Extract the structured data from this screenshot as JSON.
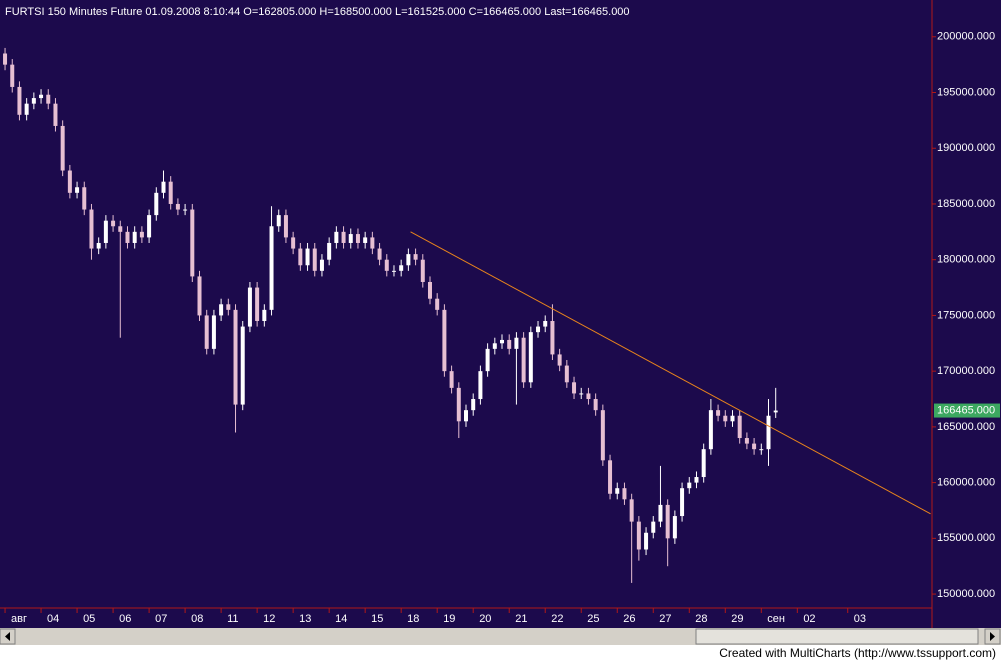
{
  "chart_data": {
    "type": "candlestick",
    "title": "FURTSI  150 Minutes  Future  01.09.2008  8:10:44  O=162805.000  H=168500.000  L=161525.000  C=166465.000  Last=166465.000",
    "footer": "Created with MultiCharts (http://www.tssupport.com)",
    "up_color": "#ffffff",
    "down_color": "#e6bfd2",
    "background": "#1c0a4c",
    "axis_line_color": "#b01818",
    "xlim": [
      -0.7,
      128.7
    ],
    "xticks": [
      {
        "value": 0,
        "label": "авг"
      },
      {
        "value": 5,
        "label": "04"
      },
      {
        "value": 10,
        "label": "05"
      },
      {
        "value": 15,
        "label": "06"
      },
      {
        "value": 20,
        "label": "07"
      },
      {
        "value": 25,
        "label": "08"
      },
      {
        "value": 30,
        "label": "11"
      },
      {
        "value": 35,
        "label": "12"
      },
      {
        "value": 40,
        "label": "13"
      },
      {
        "value": 45,
        "label": "14"
      },
      {
        "value": 50,
        "label": "15"
      },
      {
        "value": 55,
        "label": "18"
      },
      {
        "value": 60,
        "label": "19"
      },
      {
        "value": 65,
        "label": "20"
      },
      {
        "value": 70,
        "label": "21"
      },
      {
        "value": 75,
        "label": "22"
      },
      {
        "value": 80,
        "label": "25"
      },
      {
        "value": 85,
        "label": "26"
      },
      {
        "value": 90,
        "label": "27"
      },
      {
        "value": 95,
        "label": "28"
      },
      {
        "value": 100,
        "label": "29"
      },
      {
        "value": 105,
        "label": "сен"
      },
      {
        "value": 110,
        "label": "02"
      },
      {
        "value": 117,
        "label": "03"
      }
    ],
    "ylim": [
      148750,
      203300
    ],
    "yticks": [
      {
        "value": 150000,
        "label": "150000.000"
      },
      {
        "value": 155000,
        "label": "155000.000"
      },
      {
        "value": 160000,
        "label": "160000.000"
      },
      {
        "value": 165000,
        "label": "165000.000"
      },
      {
        "value": 170000,
        "label": "170000.000"
      },
      {
        "value": 175000,
        "label": "175000.000"
      },
      {
        "value": 180000,
        "label": "180000.000"
      },
      {
        "value": 185000,
        "label": "185000.000"
      },
      {
        "value": 190000,
        "label": "190000.000"
      },
      {
        "value": 195000,
        "label": "195000.000"
      },
      {
        "value": 200000,
        "label": "200000.000"
      }
    ],
    "last_price": {
      "value": 166465,
      "label": "166465.000",
      "color": "#3ca860"
    },
    "trendline": {
      "x": [
        56.3,
        128.5
      ],
      "y": [
        182500,
        157200
      ],
      "color": "#e8841c"
    },
    "open": [
      198500,
      197500,
      195500,
      193000,
      194000,
      194500,
      194800,
      194000,
      192000,
      188000,
      186000,
      186500,
      184500,
      181000,
      181500,
      183500,
      183000,
      182500,
      181500,
      182500,
      182000,
      184000,
      186000,
      187000,
      185000,
      184500,
      184500,
      178500,
      175000,
      172000,
      175000,
      176000,
      175500,
      167000,
      174000,
      177500,
      174500,
      175500,
      183000,
      184000,
      182000,
      181000,
      179500,
      181000,
      179000,
      180000,
      181500,
      182500,
      181500,
      182300,
      181500,
      182000,
      181000,
      180000,
      179000,
      179000,
      179500,
      180500,
      180000,
      178000,
      176500,
      175500,
      170000,
      168500,
      165500,
      166500,
      167500,
      170000,
      172000,
      172500,
      172800,
      172000,
      173000,
      169000,
      173500,
      174000,
      174500,
      171500,
      170500,
      169000,
      168000,
      168000,
      167500,
      166500,
      162000,
      159000,
      159500,
      158500,
      156500,
      154000,
      155500,
      156500,
      158000,
      155000,
      157000,
      159500,
      160000,
      160500,
      163000,
      166500,
      166000,
      165500,
      166000,
      164000,
      163500,
      163000,
      163000,
      166300
    ],
    "high": [
      199000,
      198000,
      196000,
      194500,
      195000,
      195300,
      195300,
      194500,
      192500,
      188500,
      187000,
      187000,
      185000,
      182000,
      184000,
      184000,
      183500,
      183000,
      183000,
      183000,
      184500,
      186500,
      188000,
      187500,
      185500,
      185000,
      185000,
      179000,
      175500,
      175500,
      176500,
      176500,
      176000,
      174500,
      178000,
      178000,
      176000,
      184800,
      184500,
      184500,
      182500,
      181500,
      181500,
      181500,
      180500,
      182000,
      183000,
      183000,
      182800,
      182800,
      182500,
      182500,
      181500,
      180500,
      179500,
      180000,
      181000,
      181000,
      180500,
      178500,
      177000,
      176000,
      170500,
      169000,
      167000,
      168000,
      170500,
      172500,
      173000,
      173300,
      173300,
      173500,
      173500,
      174000,
      174500,
      175000,
      176000,
      172000,
      171000,
      169500,
      168500,
      168500,
      168000,
      167000,
      162500,
      160000,
      160000,
      159000,
      157000,
      156000,
      157000,
      161500,
      158500,
      157500,
      160000,
      160500,
      161000,
      163500,
      167500,
      167000,
      166500,
      166500,
      166500,
      164500,
      164000,
      163500,
      167500,
      168500
    ],
    "low": [
      197000,
      195000,
      192500,
      192500,
      193500,
      194000,
      193500,
      191500,
      187500,
      185500,
      185500,
      184000,
      180000,
      180500,
      181000,
      182500,
      173000,
      181000,
      181000,
      181500,
      181500,
      183500,
      185500,
      184500,
      184000,
      184000,
      178000,
      174500,
      171500,
      171500,
      174500,
      175000,
      164500,
      166500,
      173500,
      174000,
      174000,
      175000,
      182500,
      181500,
      180500,
      179000,
      179000,
      178500,
      178500,
      179500,
      181000,
      181000,
      181000,
      181000,
      181000,
      180500,
      179500,
      178500,
      178500,
      178500,
      179000,
      179500,
      177500,
      176000,
      175000,
      169500,
      168000,
      164000,
      165000,
      166000,
      167000,
      169500,
      171500,
      172000,
      171500,
      167000,
      168500,
      168500,
      173000,
      173500,
      171000,
      170000,
      168500,
      167500,
      167500,
      167000,
      166000,
      161500,
      158500,
      158500,
      158000,
      151000,
      153000,
      153500,
      155000,
      156000,
      152500,
      154500,
      156500,
      159000,
      159500,
      160000,
      162500,
      165500,
      165000,
      165000,
      163500,
      163000,
      162500,
      162500,
      161500,
      165800
    ],
    "close": [
      197500,
      195500,
      193000,
      194000,
      194500,
      194800,
      194000,
      192000,
      188000,
      186000,
      186500,
      184500,
      181000,
      181500,
      183500,
      183000,
      182500,
      181500,
      182500,
      182000,
      184000,
      186000,
      187000,
      185000,
      184500,
      184500,
      178500,
      175000,
      172000,
      175000,
      176000,
      175500,
      167000,
      174000,
      177500,
      174500,
      175500,
      183000,
      184000,
      182000,
      181000,
      179500,
      181000,
      179000,
      180000,
      181500,
      182500,
      181500,
      182300,
      181500,
      182000,
      181000,
      180000,
      179000,
      179000,
      179500,
      180500,
      180000,
      178000,
      176500,
      175500,
      170000,
      168500,
      165500,
      166500,
      167500,
      170000,
      172000,
      172500,
      172800,
      172000,
      173000,
      169000,
      173500,
      174000,
      174500,
      171500,
      170500,
      169000,
      168000,
      168000,
      167500,
      166500,
      162000,
      159000,
      159500,
      158500,
      156500,
      154000,
      155500,
      156500,
      158000,
      155000,
      157000,
      159500,
      160000,
      160500,
      163000,
      166500,
      166000,
      165500,
      166000,
      164000,
      163500,
      163000,
      163000,
      166000,
      166465
    ]
  }
}
